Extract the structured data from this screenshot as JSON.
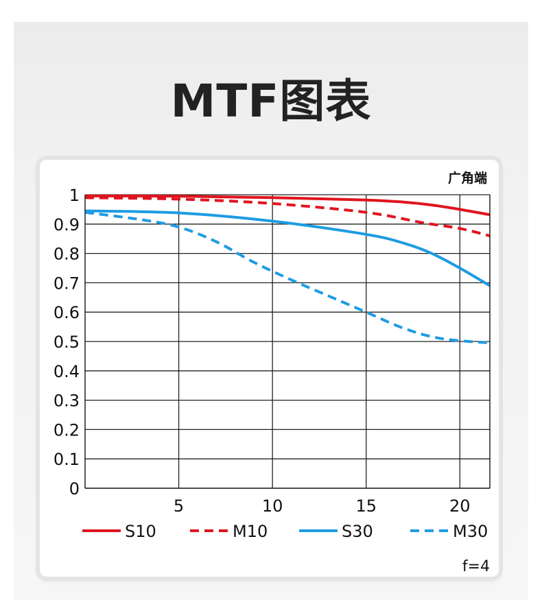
{
  "page": {
    "title": "MTF图表"
  },
  "chart_data": {
    "type": "line",
    "title": "MTF图表",
    "corner_label": "广角端",
    "footnote": "f=4",
    "xlabel": "",
    "ylabel": "",
    "xlim": [
      0,
      21.6
    ],
    "ylim": [
      0,
      1
    ],
    "grid": true,
    "x_ticks": [
      5,
      10,
      15,
      20
    ],
    "x_tick_labels": [
      "5",
      "10",
      "15",
      "20"
    ],
    "y_ticks": [
      0,
      0.1,
      0.2,
      0.3,
      0.4,
      0.5,
      0.6,
      0.7,
      0.8,
      0.9,
      1
    ],
    "y_tick_labels": [
      "0",
      "0.1",
      "0.2",
      "0.3",
      "0.4",
      "0.5",
      "0.6",
      "0.7",
      "0.8",
      "0.9",
      "1"
    ],
    "legend_position": "bottom",
    "series": [
      {
        "name": "S10",
        "color": "#e0141e",
        "style": "solid",
        "points": [
          [
            0,
            0.996
          ],
          [
            5,
            0.995
          ],
          [
            10,
            0.99
          ],
          [
            15,
            0.982
          ],
          [
            17,
            0.975
          ],
          [
            18.5,
            0.965
          ],
          [
            20,
            0.95
          ],
          [
            21.6,
            0.932
          ]
        ]
      },
      {
        "name": "M10",
        "color": "#e0141e",
        "style": "dashed",
        "points": [
          [
            0,
            0.99
          ],
          [
            5,
            0.985
          ],
          [
            10,
            0.97
          ],
          [
            15,
            0.94
          ],
          [
            18,
            0.905
          ],
          [
            20,
            0.885
          ],
          [
            21.6,
            0.86
          ]
        ]
      },
      {
        "name": "S30",
        "color": "#1e9be3",
        "style": "solid",
        "points": [
          [
            0,
            0.945
          ],
          [
            5,
            0.938
          ],
          [
            10,
            0.91
          ],
          [
            15,
            0.865
          ],
          [
            17,
            0.835
          ],
          [
            18.5,
            0.8
          ],
          [
            20,
            0.75
          ],
          [
            21.6,
            0.69
          ]
        ]
      },
      {
        "name": "M30",
        "color": "#1e9be3",
        "style": "dashed",
        "points": [
          [
            0,
            0.94
          ],
          [
            3,
            0.915
          ],
          [
            5,
            0.89
          ],
          [
            7,
            0.84
          ],
          [
            9,
            0.77
          ],
          [
            11,
            0.71
          ],
          [
            13,
            0.655
          ],
          [
            15,
            0.6
          ],
          [
            17,
            0.545
          ],
          [
            19,
            0.51
          ],
          [
            21.6,
            0.495
          ]
        ]
      }
    ]
  }
}
